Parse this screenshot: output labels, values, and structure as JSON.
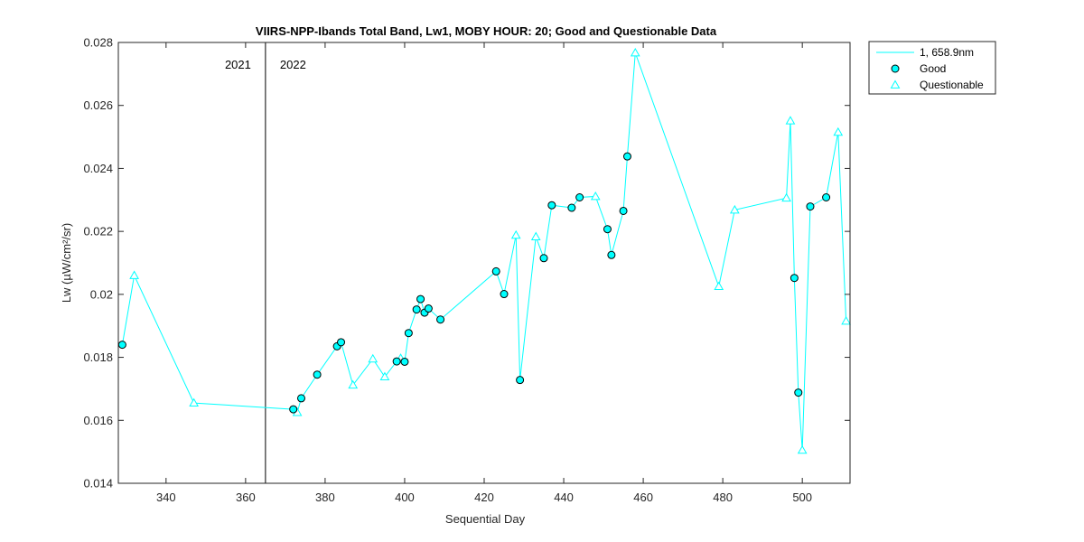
{
  "chart_data": {
    "type": "line",
    "title": "VIIRS-NPP-Ibands Total Band,  Lw1, MOBY HOUR: 20;  Good and Questionable Data",
    "xlabel": "Sequential Day",
    "ylabel": "Lw (µW/cm²/sr)",
    "xlim": [
      328,
      512
    ],
    "ylim": [
      0.014,
      0.028
    ],
    "xticks": [
      340,
      360,
      380,
      400,
      420,
      440,
      460,
      480,
      500
    ],
    "xtick_labels": [
      "340",
      "360",
      "380",
      "400",
      "420",
      "440",
      "460",
      "480",
      "500"
    ],
    "yticks": [
      0.014,
      0.016,
      0.018,
      0.02,
      0.022,
      0.024,
      0.026,
      0.028
    ],
    "ytick_labels": [
      "0.014",
      "0.016",
      "0.018",
      "0.02",
      "0.022",
      "0.024",
      "0.026",
      "0.028"
    ],
    "grid": false,
    "legend_position": "outside-top-right",
    "year_divider": {
      "x": 365,
      "left_label": "2021",
      "right_label": "2022"
    },
    "colors": {
      "series": "#00ffff",
      "marker_edge_good": "#000000",
      "axis": "#262626"
    },
    "series": [
      {
        "name": "1, 658.9nm",
        "x": [
          329,
          332,
          347,
          372,
          373,
          374,
          378,
          383,
          384,
          387,
          392,
          395,
          398,
          399,
          400,
          401,
          403,
          404,
          405,
          406,
          409,
          423,
          425,
          428,
          429,
          433,
          435,
          437,
          442,
          444,
          448,
          451,
          452,
          455,
          456,
          458,
          479,
          483,
          496,
          497,
          498,
          499,
          500,
          502,
          506,
          509,
          511
        ],
        "y": [
          0.0184,
          0.0206,
          0.01655,
          0.01635,
          0.01625,
          0.0167,
          0.01745,
          0.01835,
          0.01848,
          0.01712,
          0.01795,
          0.01738,
          0.01787,
          0.01797,
          0.01786,
          0.01877,
          0.01952,
          0.01985,
          0.01942,
          0.01955,
          0.0192,
          0.02073,
          0.02001,
          0.02188,
          0.01728,
          0.02183,
          0.02115,
          0.02283,
          0.02275,
          0.02308,
          0.02311,
          0.02207,
          0.02125,
          0.02265,
          0.02438,
          0.02767,
          0.02025,
          0.02268,
          0.02306,
          0.02551,
          0.02052,
          0.01688,
          0.01505,
          0.02279,
          0.02308,
          0.02515,
          0.01915
        ]
      },
      {
        "name": "Good",
        "marker": "circle",
        "x": [
          329,
          372,
          374,
          378,
          383,
          384,
          398,
          400,
          401,
          403,
          404,
          405,
          406,
          409,
          423,
          425,
          429,
          435,
          437,
          442,
          444,
          451,
          452,
          455,
          456,
          498,
          499,
          502,
          506
        ],
        "y": [
          0.0184,
          0.01635,
          0.0167,
          0.01745,
          0.01835,
          0.01848,
          0.01787,
          0.01786,
          0.01877,
          0.01952,
          0.01985,
          0.01942,
          0.01955,
          0.0192,
          0.02073,
          0.02001,
          0.01728,
          0.02115,
          0.02283,
          0.02275,
          0.02308,
          0.02207,
          0.02125,
          0.02265,
          0.02438,
          0.02052,
          0.01688,
          0.02279,
          0.02308
        ]
      },
      {
        "name": "Questionable",
        "marker": "triangle",
        "x": [
          332,
          347,
          373,
          387,
          392,
          395,
          399,
          428,
          433,
          448,
          458,
          479,
          483,
          496,
          497,
          500,
          509,
          511
        ],
        "y": [
          0.0206,
          0.01655,
          0.01625,
          0.01712,
          0.01795,
          0.01738,
          0.01797,
          0.02188,
          0.02183,
          0.02311,
          0.02767,
          0.02025,
          0.02268,
          0.02306,
          0.02551,
          0.01505,
          0.02515,
          0.01915
        ]
      }
    ]
  }
}
